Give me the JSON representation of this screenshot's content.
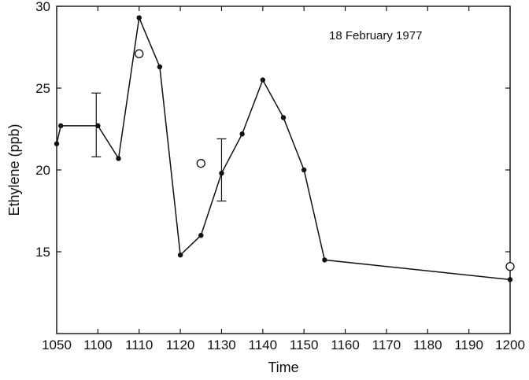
{
  "chart_data": {
    "type": "line",
    "annotation": "18 February 1977",
    "xlabel": "Time",
    "ylabel": "Ethylene (ppb)",
    "xlim": [
      1050,
      1200
    ],
    "ylim": [
      10,
      30
    ],
    "x_ticks": [
      {
        "value": 1050,
        "label": "1050"
      },
      {
        "value": 1100,
        "label": "1100"
      },
      {
        "value": 1110,
        "label": "1110"
      },
      {
        "value": 1120,
        "label": "1120"
      },
      {
        "value": 1130,
        "label": "1130"
      },
      {
        "value": 1140,
        "label": "1140"
      },
      {
        "value": 1150,
        "label": "1150"
      },
      {
        "value": 1160,
        "label": "1160"
      },
      {
        "value": 1170,
        "label": "1170"
      },
      {
        "value": 1180,
        "label": "1180"
      },
      {
        "value": 1190,
        "label": "1190"
      },
      {
        "value": 1200,
        "label": "1200"
      }
    ],
    "y_ticks": [
      {
        "value": 15,
        "label": "15"
      },
      {
        "value": 20,
        "label": "20"
      },
      {
        "value": 25,
        "label": "25"
      },
      {
        "value": 30,
        "label": "30"
      }
    ],
    "grid": false,
    "series": [
      {
        "style": "line-filled-markers",
        "points": [
          {
            "x": 1050,
            "y": 21.6
          },
          {
            "x": 1055,
            "y": 22.7
          },
          {
            "x": 1100,
            "y": 22.7
          },
          {
            "x": 1105,
            "y": 20.7
          },
          {
            "x": 1110,
            "y": 29.3
          },
          {
            "x": 1115,
            "y": 26.3
          },
          {
            "x": 1120,
            "y": 14.8
          },
          {
            "x": 1125,
            "y": 16.0
          },
          {
            "x": 1130,
            "y": 19.8
          },
          {
            "x": 1135,
            "y": 22.2
          },
          {
            "x": 1140,
            "y": 25.5
          },
          {
            "x": 1145,
            "y": 23.2
          },
          {
            "x": 1150,
            "y": 20.0
          },
          {
            "x": 1155,
            "y": 14.5
          },
          {
            "x": 1200,
            "y": 13.3
          }
        ]
      },
      {
        "style": "open-circles",
        "points": [
          {
            "x": 1110,
            "y": 27.1
          },
          {
            "x": 1125,
            "y": 20.4
          },
          {
            "x": 1200,
            "y": 14.1
          }
        ]
      }
    ],
    "error_bars": [
      {
        "x": 1098,
        "y": 22.7,
        "low": 20.8,
        "high": 24.7
      },
      {
        "x": 1130,
        "y": 19.8,
        "low": 18.1,
        "high": 21.9
      }
    ]
  }
}
